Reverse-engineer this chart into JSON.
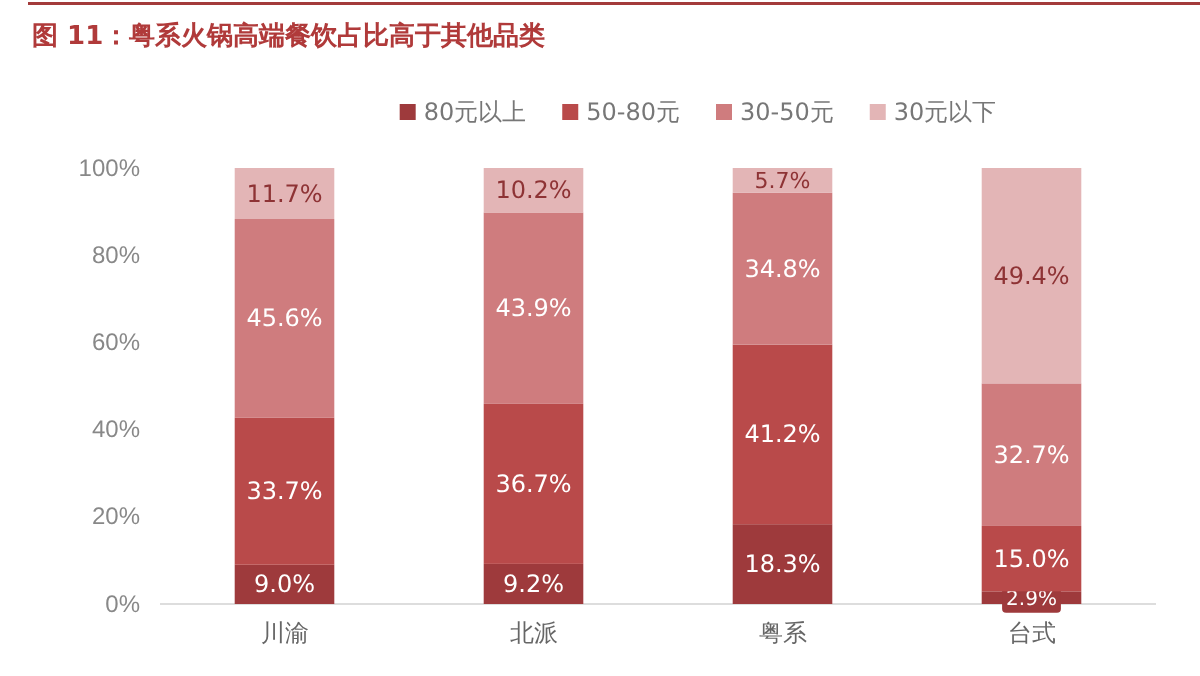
{
  "chart_data": {
    "type": "bar",
    "title": "图 11：粤系火锅高端餐饮占比高于其他品类",
    "categories": [
      "川渝",
      "北派",
      "粤系",
      "台式"
    ],
    "stacked": true,
    "legend": "top",
    "grid": false,
    "ylim": [
      0,
      100
    ],
    "yticks": [
      {
        "value": 0,
        "label": "0%"
      },
      {
        "value": 20,
        "label": "20%"
      },
      {
        "value": 40,
        "label": "40%"
      },
      {
        "value": 60,
        "label": "60%"
      },
      {
        "value": 80,
        "label": "80%"
      },
      {
        "value": 100,
        "label": "100%"
      }
    ],
    "series": [
      {
        "name": "80元以上",
        "color": "#9e3a3c",
        "values": [
          9.0,
          9.2,
          18.3,
          2.9
        ],
        "value_labels": [
          "9.0%",
          "9.2%",
          "18.3%",
          "2.9%"
        ]
      },
      {
        "name": "50-80元",
        "color": "#b94a4a",
        "values": [
          33.7,
          36.7,
          41.2,
          15.0
        ],
        "value_labels": [
          "33.7%",
          "36.7%",
          "41.2%",
          "15.0%"
        ]
      },
      {
        "name": "30-50元",
        "color": "#cf7c7e",
        "values": [
          45.6,
          43.9,
          34.8,
          32.7
        ],
        "value_labels": [
          "45.6%",
          "43.9%",
          "34.8%",
          "32.7%"
        ]
      },
      {
        "name": "30元以下",
        "color": "#e3b5b6",
        "values": [
          11.7,
          10.2,
          5.7,
          49.4
        ],
        "value_labels": [
          "11.7%",
          "10.2%",
          "5.7%",
          "49.4%"
        ]
      }
    ]
  }
}
